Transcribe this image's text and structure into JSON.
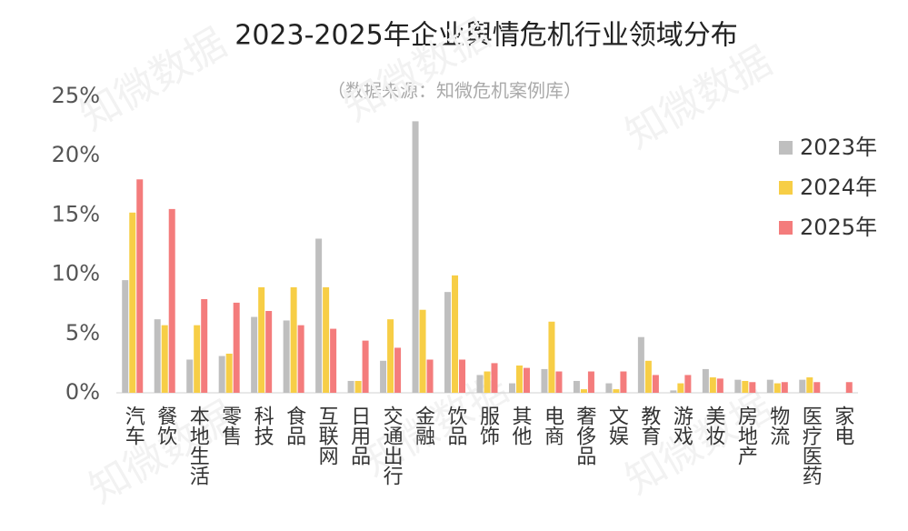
{
  "chart_data": {
    "type": "bar",
    "title": "2023-2025年企业舆情危机行业领域分布",
    "subtitle": "（数据来源：知微危机案例库）",
    "watermark": "知微数据",
    "categories": [
      "汽车",
      "餐饮",
      "本地生活",
      "零售",
      "科技",
      "食品",
      "互联网",
      "日用品",
      "交通出行",
      "金融",
      "饮品",
      "服饰",
      "其他",
      "电商",
      "奢侈品",
      "文娱",
      "教育",
      "游戏",
      "美妆",
      "房地产",
      "物流",
      "医疗医药",
      "家电"
    ],
    "series": [
      {
        "name": "2023年",
        "color": "#bfbfbf",
        "values": [
          9.5,
          6.2,
          2.8,
          3.1,
          6.4,
          6.1,
          13.0,
          1.0,
          2.7,
          22.9,
          8.5,
          1.5,
          0.8,
          2.0,
          1.0,
          0.8,
          4.7,
          0.2,
          2.0,
          1.1,
          1.1,
          1.1,
          0
        ]
      },
      {
        "name": "2024年",
        "color": "#f7ce46",
        "values": [
          15.2,
          5.7,
          5.7,
          3.3,
          8.9,
          8.9,
          8.9,
          1.0,
          6.2,
          7.0,
          9.9,
          1.8,
          2.3,
          6.0,
          0.3,
          0.3,
          2.7,
          0.8,
          1.3,
          1.0,
          0.8,
          1.3,
          0
        ]
      },
      {
        "name": "2025年",
        "color": "#f47c7c",
        "values": [
          18.0,
          15.5,
          7.9,
          7.6,
          6.9,
          5.7,
          5.4,
          4.4,
          3.8,
          2.8,
          2.8,
          2.5,
          2.1,
          1.8,
          1.8,
          1.8,
          1.5,
          1.5,
          1.2,
          0.9,
          0.9,
          0.9,
          0.9
        ]
      }
    ],
    "ylim": [
      0,
      25
    ],
    "yticks": [
      {
        "value": 0,
        "label": "0%"
      },
      {
        "value": 5,
        "label": "5%"
      },
      {
        "value": 10,
        "label": "10%"
      },
      {
        "value": 15,
        "label": "15%"
      },
      {
        "value": 20,
        "label": "20%"
      },
      {
        "value": 25,
        "label": "25%"
      }
    ],
    "grid": false,
    "legend": "right"
  }
}
